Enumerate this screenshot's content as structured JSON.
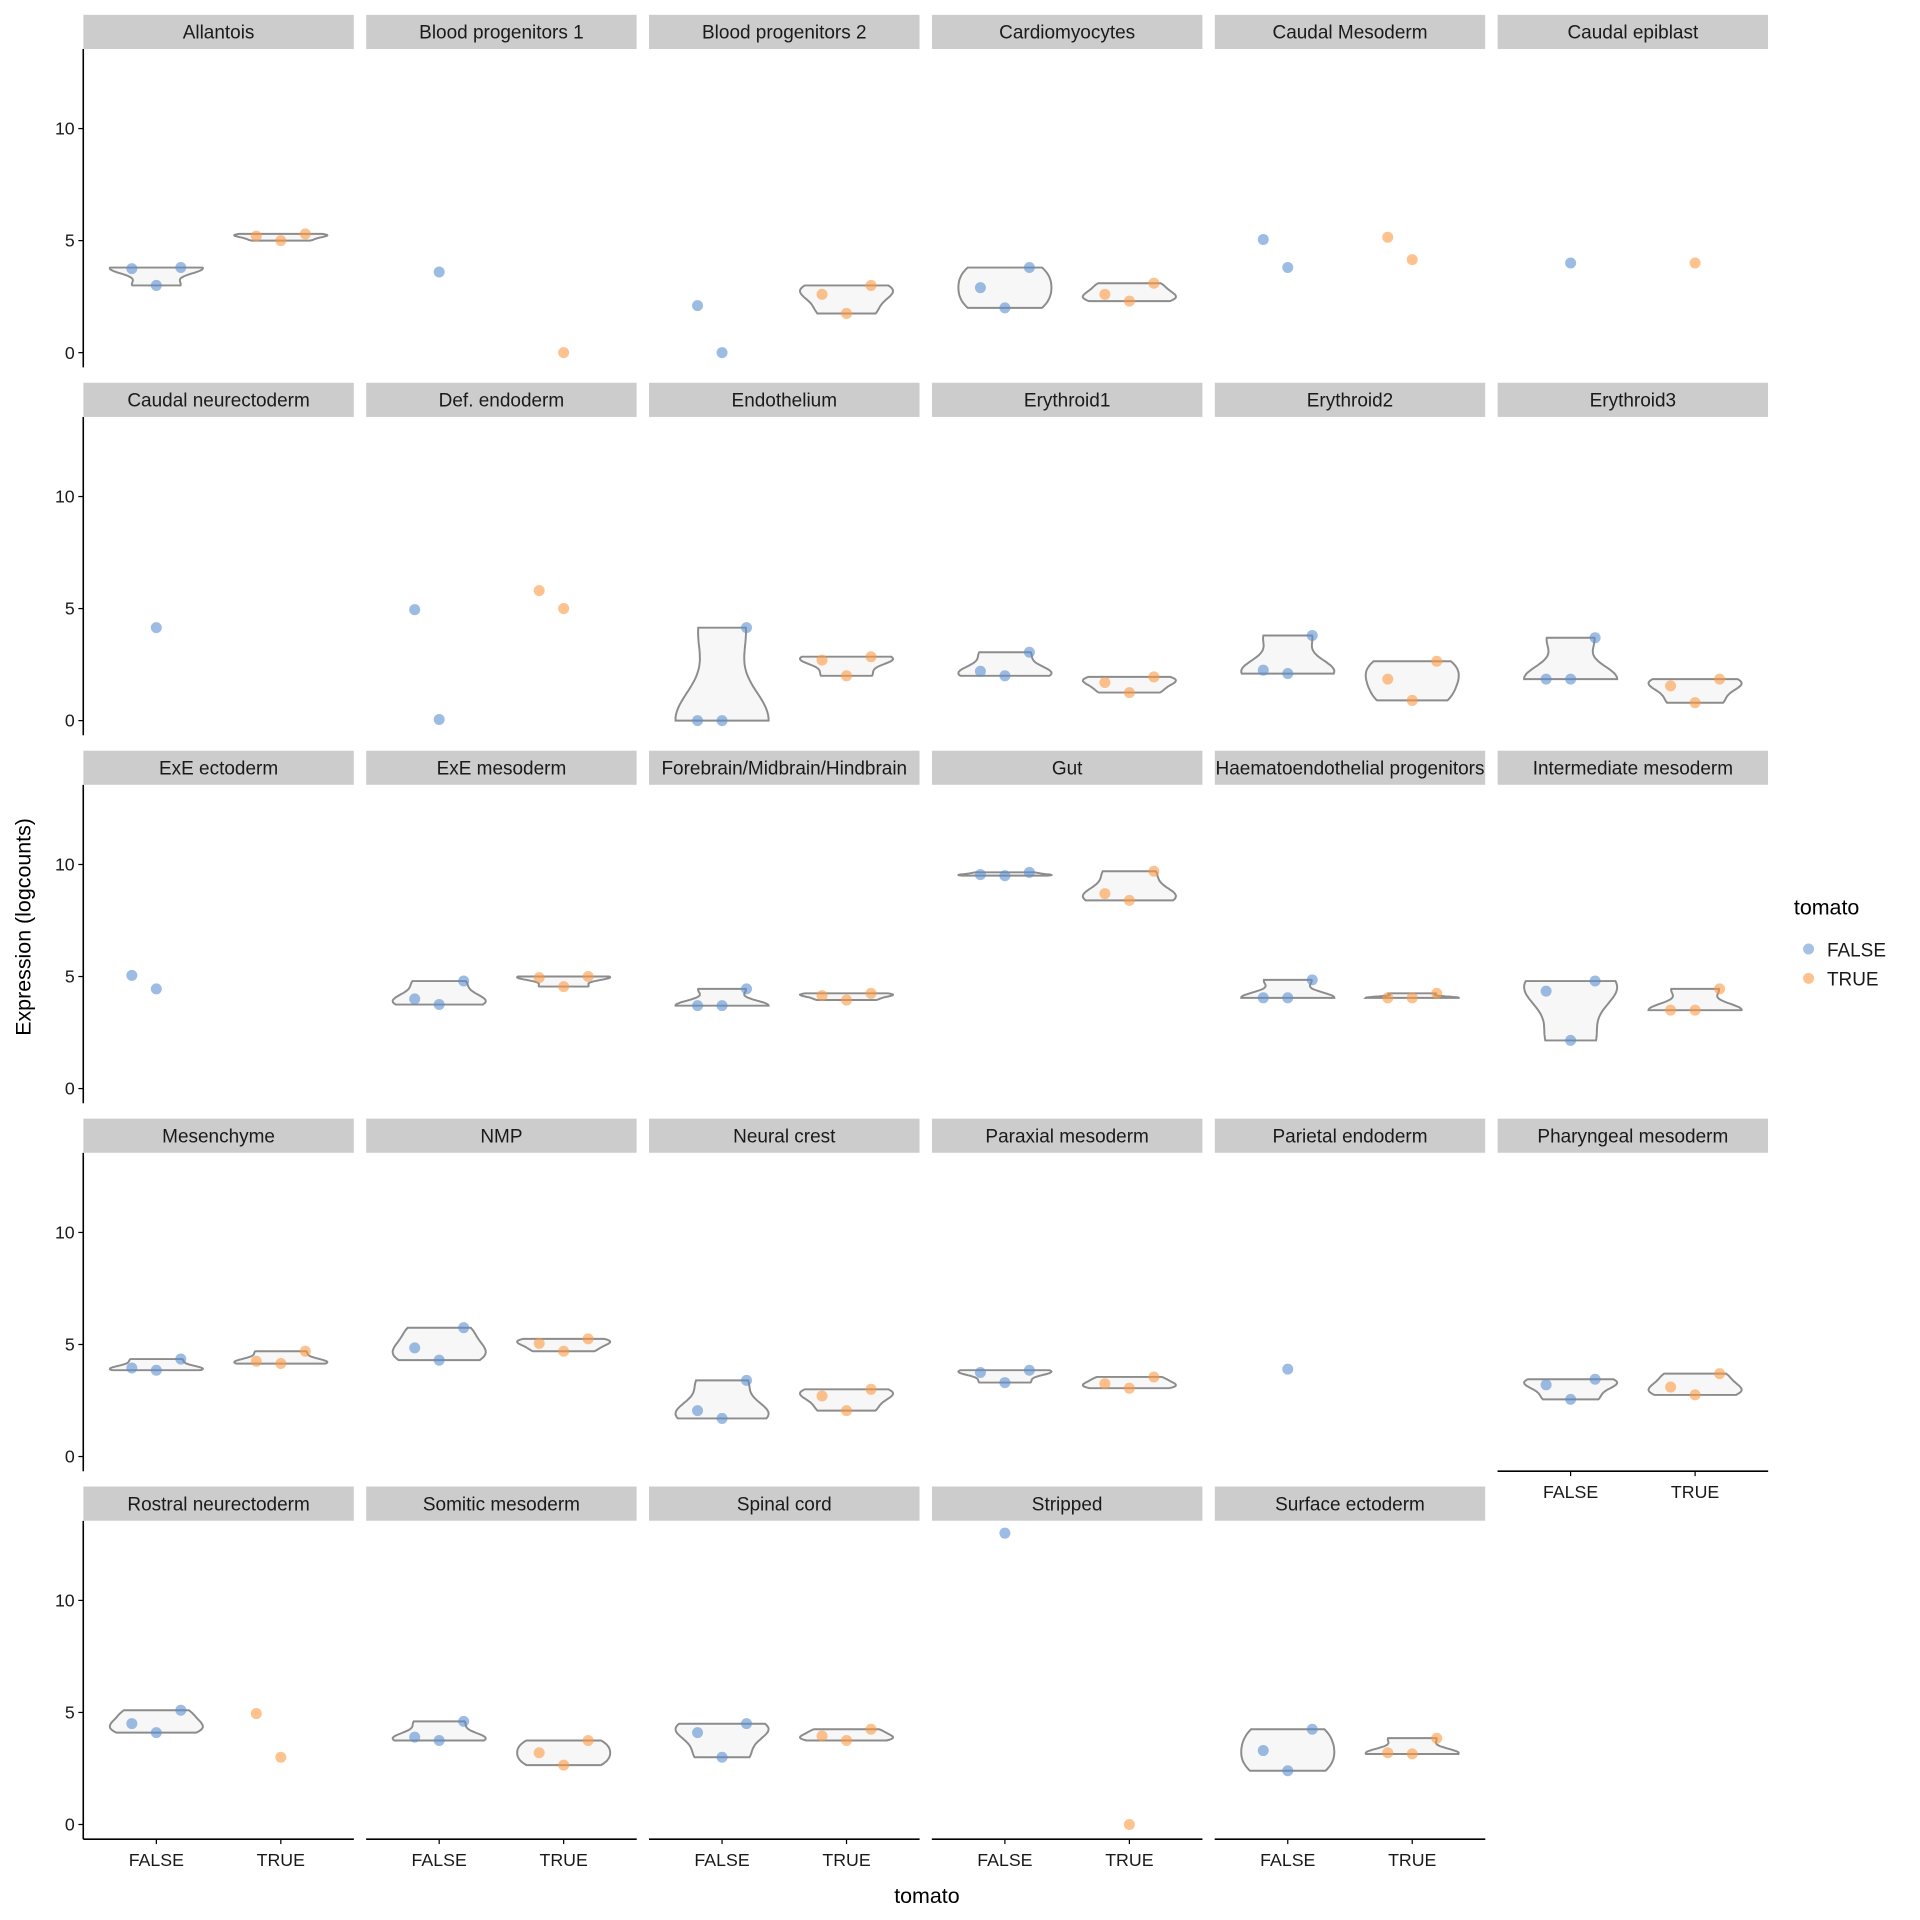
{
  "chart_data": {
    "type": "violin",
    "xlabel": "tomato",
    "ylabel": "Expression (logcounts)",
    "x_categories": [
      "FALSE",
      "TRUE"
    ],
    "yticks": [
      0,
      5,
      10
    ],
    "ylim": [
      -0.6,
      13.6
    ],
    "grid": false,
    "legend": {
      "title": "tomato",
      "placement": "right",
      "entries": [
        {
          "label": "FALSE",
          "color": "#5b8fd0"
        },
        {
          "label": "TRUE",
          "color": "#fd9a45"
        }
      ]
    },
    "panels": [
      {
        "title": "Allantois",
        "FALSE": [
          3.75,
          3.0,
          3.8
        ],
        "TRUE": [
          5.2,
          5.0,
          5.3
        ]
      },
      {
        "title": "Blood progenitors 1",
        "FALSE": [
          3.6
        ],
        "TRUE": [
          0
        ]
      },
      {
        "title": "Blood progenitors 2",
        "FALSE": [
          2.1,
          0
        ],
        "TRUE": [
          2.6,
          1.75,
          3.0
        ]
      },
      {
        "title": "Cardiomyocytes",
        "FALSE": [
          2.9,
          2.0,
          3.8
        ],
        "TRUE": [
          2.6,
          2.3,
          3.1
        ]
      },
      {
        "title": "Caudal Mesoderm",
        "FALSE": [
          5.05,
          3.8
        ],
        "TRUE": [
          5.15,
          4.15
        ]
      },
      {
        "title": "Caudal epiblast",
        "FALSE": [
          4.0
        ],
        "TRUE": [
          4.0
        ]
      },
      {
        "title": "Caudal neurectoderm",
        "FALSE": [
          4.15
        ],
        "TRUE": []
      },
      {
        "title": "Def. endoderm",
        "FALSE": [
          4.95,
          0.05
        ],
        "TRUE": [
          5.8,
          5.0
        ]
      },
      {
        "title": "Endothelium",
        "FALSE": [
          0,
          0,
          4.15
        ],
        "TRUE": [
          2.7,
          2.0,
          2.85
        ]
      },
      {
        "title": "Erythroid1",
        "FALSE": [
          2.2,
          2.0,
          3.05
        ],
        "TRUE": [
          1.7,
          1.25,
          1.95
        ]
      },
      {
        "title": "Erythroid2",
        "FALSE": [
          2.25,
          2.1,
          3.8
        ],
        "TRUE": [
          1.85,
          0.9,
          2.65
        ]
      },
      {
        "title": "Erythroid3",
        "FALSE": [
          1.85,
          1.85,
          3.7
        ],
        "TRUE": [
          1.55,
          0.8,
          1.85
        ]
      },
      {
        "title": "ExE ectoderm",
        "FALSE": [
          5.05,
          4.45
        ],
        "TRUE": []
      },
      {
        "title": "ExE mesoderm",
        "FALSE": [
          4.0,
          3.75,
          4.8
        ],
        "TRUE": [
          4.95,
          4.55,
          5.0
        ]
      },
      {
        "title": "Forebrain/Midbrain/Hindbrain",
        "FALSE": [
          3.7,
          3.7,
          4.45
        ],
        "TRUE": [
          4.15,
          3.95,
          4.25
        ]
      },
      {
        "title": "Gut",
        "FALSE": [
          9.55,
          9.5,
          9.65
        ],
        "TRUE": [
          8.7,
          8.4,
          9.7
        ]
      },
      {
        "title": "Haematoendothelial progenitors",
        "FALSE": [
          4.05,
          4.05,
          4.85
        ],
        "TRUE": [
          4.05,
          4.05,
          4.25
        ]
      },
      {
        "title": "Intermediate mesoderm",
        "FALSE": [
          4.35,
          2.15,
          4.8
        ],
        "TRUE": [
          3.5,
          3.5,
          4.45
        ]
      },
      {
        "title": "Mesenchyme",
        "FALSE": [
          3.95,
          3.85,
          4.35
        ],
        "TRUE": [
          4.25,
          4.15,
          4.7
        ]
      },
      {
        "title": "NMP",
        "FALSE": [
          4.85,
          4.3,
          5.75
        ],
        "TRUE": [
          5.05,
          4.7,
          5.25
        ]
      },
      {
        "title": "Neural crest",
        "FALSE": [
          2.05,
          1.7,
          3.4
        ],
        "TRUE": [
          2.7,
          2.05,
          3.0
        ]
      },
      {
        "title": "Paraxial mesoderm",
        "FALSE": [
          3.75,
          3.3,
          3.85
        ],
        "TRUE": [
          3.25,
          3.05,
          3.55
        ]
      },
      {
        "title": "Parietal endoderm",
        "FALSE": [
          3.9
        ],
        "TRUE": []
      },
      {
        "title": "Pharyngeal mesoderm",
        "FALSE": [
          3.2,
          2.55,
          3.45
        ],
        "TRUE": [
          3.1,
          2.75,
          3.7
        ]
      },
      {
        "title": "Rostral neurectoderm",
        "FALSE": [
          4.5,
          4.1,
          5.1
        ],
        "TRUE": [
          4.95,
          3.0
        ]
      },
      {
        "title": "Somitic mesoderm",
        "FALSE": [
          3.9,
          3.75,
          4.6
        ],
        "TRUE": [
          3.2,
          2.65,
          3.75
        ]
      },
      {
        "title": "Spinal cord",
        "FALSE": [
          4.1,
          3.0,
          4.5
        ],
        "TRUE": [
          3.95,
          3.75,
          4.25
        ]
      },
      {
        "title": "Stripped",
        "FALSE": [
          13.0
        ],
        "TRUE": [
          0
        ]
      },
      {
        "title": "Surface ectoderm",
        "FALSE": [
          3.3,
          2.4,
          4.25
        ],
        "TRUE": [
          3.2,
          3.15,
          3.85
        ]
      }
    ]
  }
}
